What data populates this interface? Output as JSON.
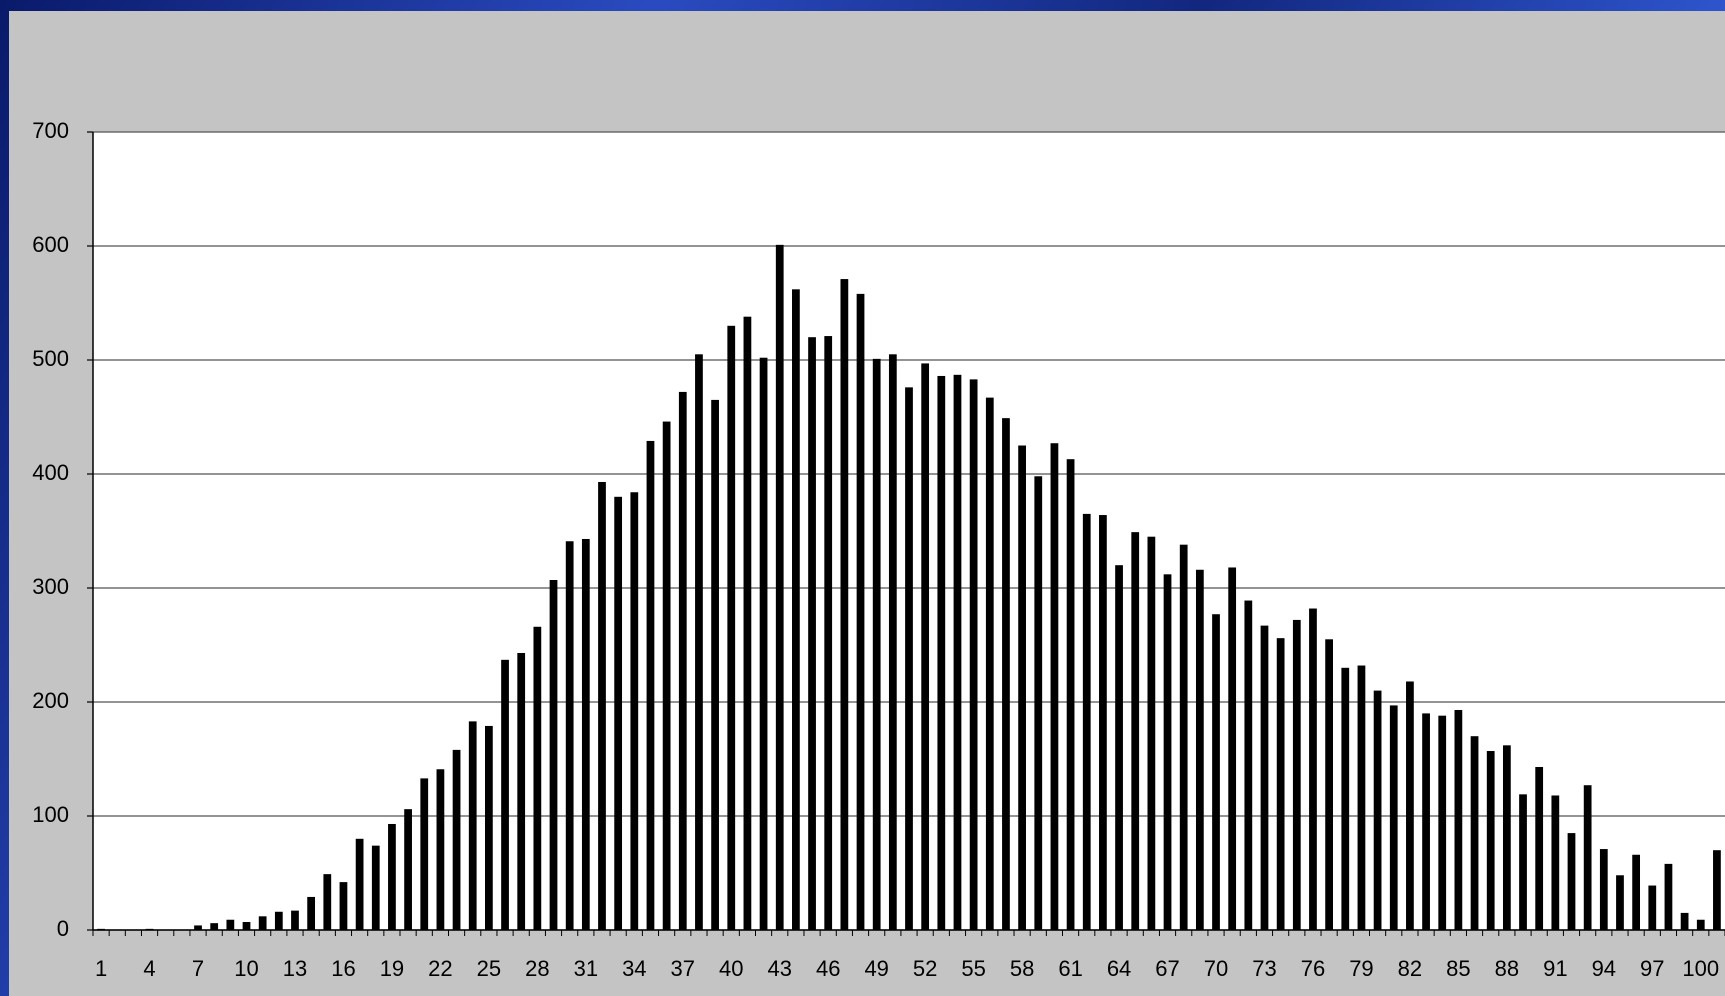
{
  "chart_data": {
    "type": "bar",
    "categories": [
      1,
      null,
      null,
      4,
      null,
      null,
      7,
      null,
      null,
      10,
      null,
      null,
      13,
      null,
      null,
      16,
      null,
      null,
      19,
      null,
      null,
      22,
      null,
      null,
      25,
      null,
      null,
      28,
      null,
      null,
      31,
      null,
      null,
      34,
      null,
      null,
      37,
      null,
      null,
      40,
      null,
      null,
      43,
      null,
      null,
      46,
      null,
      null,
      49,
      null,
      null,
      52,
      null,
      null,
      55,
      null,
      null,
      58,
      null,
      null,
      61,
      null,
      null,
      64,
      null,
      null,
      67,
      null,
      null,
      70,
      null,
      null,
      73,
      null,
      null,
      76,
      null,
      null,
      79,
      null,
      null,
      82,
      null,
      null,
      85,
      null,
      null,
      88,
      null,
      null,
      91,
      null,
      null,
      94,
      null,
      null,
      97,
      null,
      null,
      100,
      null
    ],
    "values": [
      1,
      0,
      0,
      1,
      0,
      0,
      4,
      6,
      9,
      7,
      12,
      16,
      17,
      29,
      49,
      42,
      80,
      74,
      93,
      106,
      133,
      141,
      158,
      183,
      179,
      237,
      243,
      266,
      307,
      341,
      343,
      393,
      380,
      384,
      429,
      446,
      472,
      505,
      465,
      530,
      538,
      502,
      601,
      562,
      520,
      521,
      571,
      558,
      501,
      505,
      476,
      497,
      486,
      487,
      483,
      467,
      449,
      425,
      398,
      427,
      413,
      365,
      364,
      320,
      349,
      345,
      312,
      338,
      316,
      277,
      318,
      289,
      267,
      256,
      272,
      282,
      255,
      230,
      232,
      210,
      197,
      218,
      190,
      188,
      193,
      170,
      157,
      162,
      119,
      143,
      118,
      85,
      127,
      71,
      48,
      66,
      39,
      58,
      15,
      9,
      70
    ],
    "color": "#000000",
    "ylim": [
      0,
      700
    ],
    "yticks": [
      0,
      100,
      200,
      300,
      400,
      500,
      600,
      700
    ],
    "grid": true
  }
}
